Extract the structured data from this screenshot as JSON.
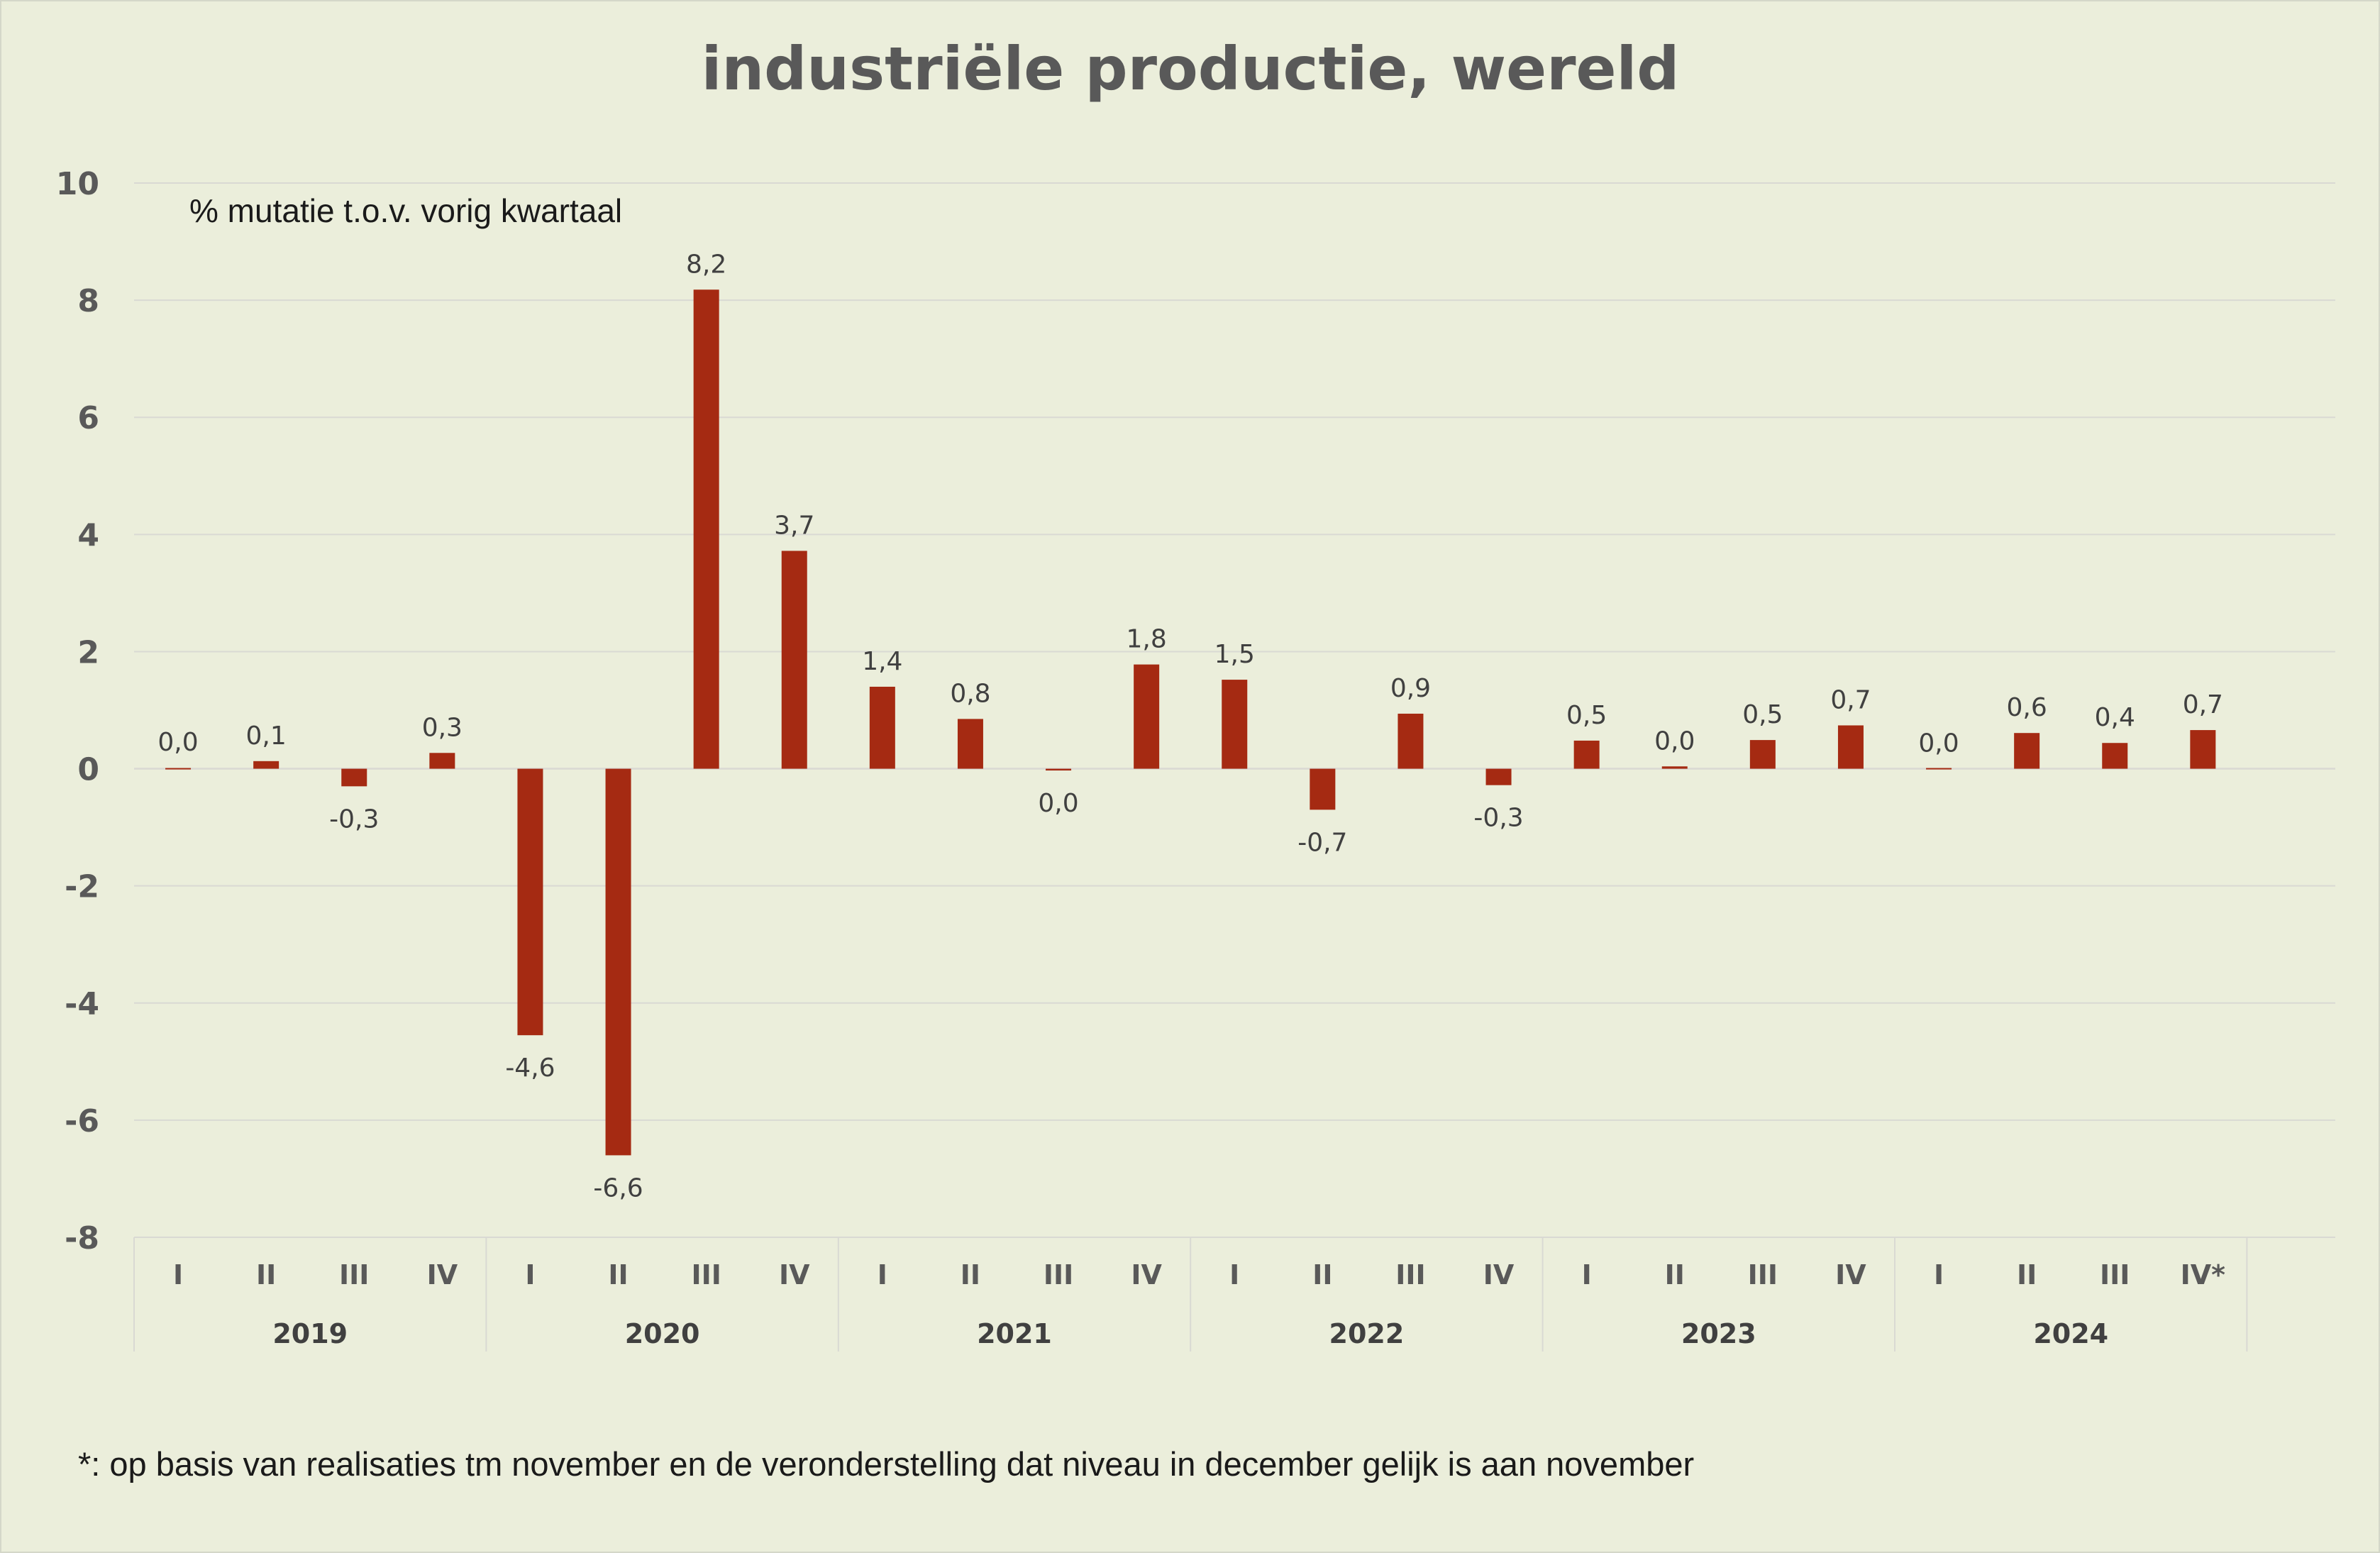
{
  "chart_data": {
    "type": "bar",
    "title": "industriële productie, wereld",
    "subtitle": "% mutatie t.o.v. vorig kwartaal",
    "ylim": [
      -8,
      10
    ],
    "yticks": [
      10,
      8,
      6,
      4,
      2,
      0,
      -2,
      -4,
      -6,
      -8
    ],
    "grid": true,
    "bar_color": "#a52a12",
    "categories": [
      "I",
      "II",
      "III",
      "IV",
      "I",
      "II",
      "III",
      "IV",
      "I",
      "II",
      "III",
      "IV",
      "I",
      "II",
      "III",
      "IV",
      "I",
      "II",
      "III",
      "IV",
      "I",
      "II",
      "III",
      "IV*"
    ],
    "years": [
      "2019",
      "2020",
      "2021",
      "2022",
      "2023",
      "2024"
    ],
    "values": [
      0.02,
      0.13,
      -0.3,
      0.27,
      -4.55,
      -6.6,
      8.18,
      3.72,
      1.4,
      0.85,
      -0.03,
      1.78,
      1.52,
      -0.7,
      0.94,
      -0.28,
      0.48,
      0.04,
      0.49,
      0.74,
      0.0,
      0.61,
      0.44,
      0.66
    ],
    "data_labels": [
      "0,0",
      "0,1",
      "-0,3",
      "0,3",
      "-4,6",
      "-6,6",
      "8,2",
      "3,7",
      "1,4",
      "0,8",
      "0,0",
      "1,8",
      "1,5",
      "-0,7",
      "0,9",
      "-0,3",
      "0,5",
      "0,0",
      "0,5",
      "0,7",
      "0,0",
      "0,6",
      "0,4",
      "0,7"
    ]
  },
  "footnote": "*: op basis van realisaties tm november en de veronderstelling dat niveau in december gelijk is aan november"
}
